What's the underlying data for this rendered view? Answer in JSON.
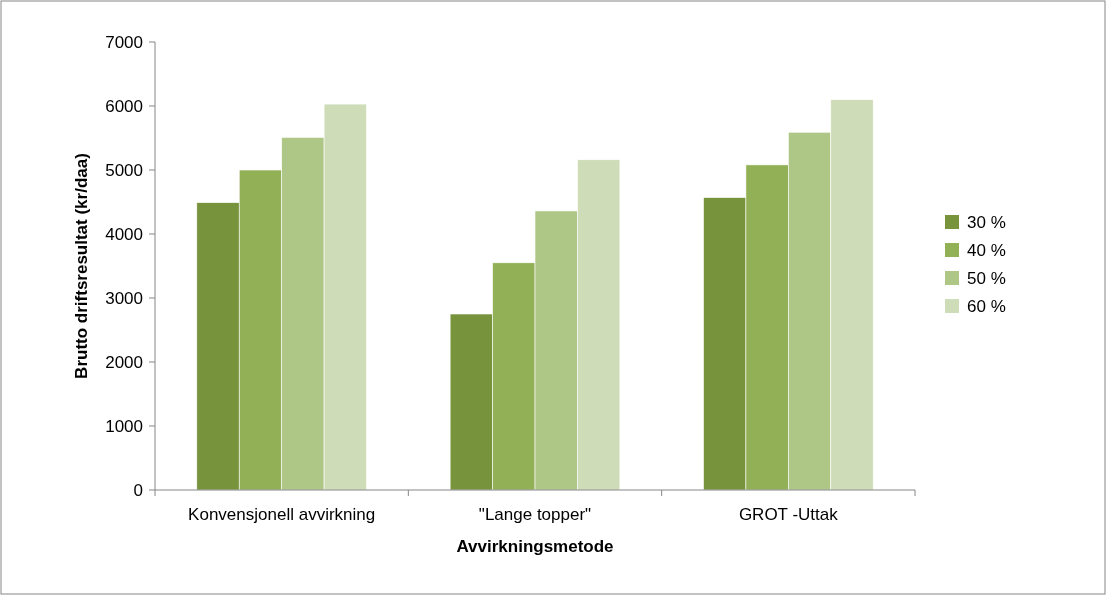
{
  "chart_data": {
    "type": "bar",
    "xlabel": "Avvirkningsmetode",
    "ylabel": "Brutto driftsresultat (kr/daa)",
    "categories": [
      "Konvensjonell avvirkning",
      "\"Lange topper\"",
      "GROT -Uttak"
    ],
    "series": [
      {
        "name": "30 %",
        "color": "#77933c",
        "values": [
          4490,
          2750,
          4570
        ]
      },
      {
        "name": "40 %",
        "color": "#92b055",
        "values": [
          5000,
          3550,
          5080
        ]
      },
      {
        "name": "50 %",
        "color": "#afc786",
        "values": [
          5510,
          4360,
          5590
        ]
      },
      {
        "name": "60 %",
        "color": "#cfdcb8",
        "values": [
          6030,
          5160,
          6100
        ]
      }
    ],
    "ylim": [
      0,
      7000
    ],
    "yticks": [
      0,
      1000,
      2000,
      3000,
      4000,
      5000,
      6000,
      7000
    ],
    "grid": false,
    "legend": "right"
  }
}
